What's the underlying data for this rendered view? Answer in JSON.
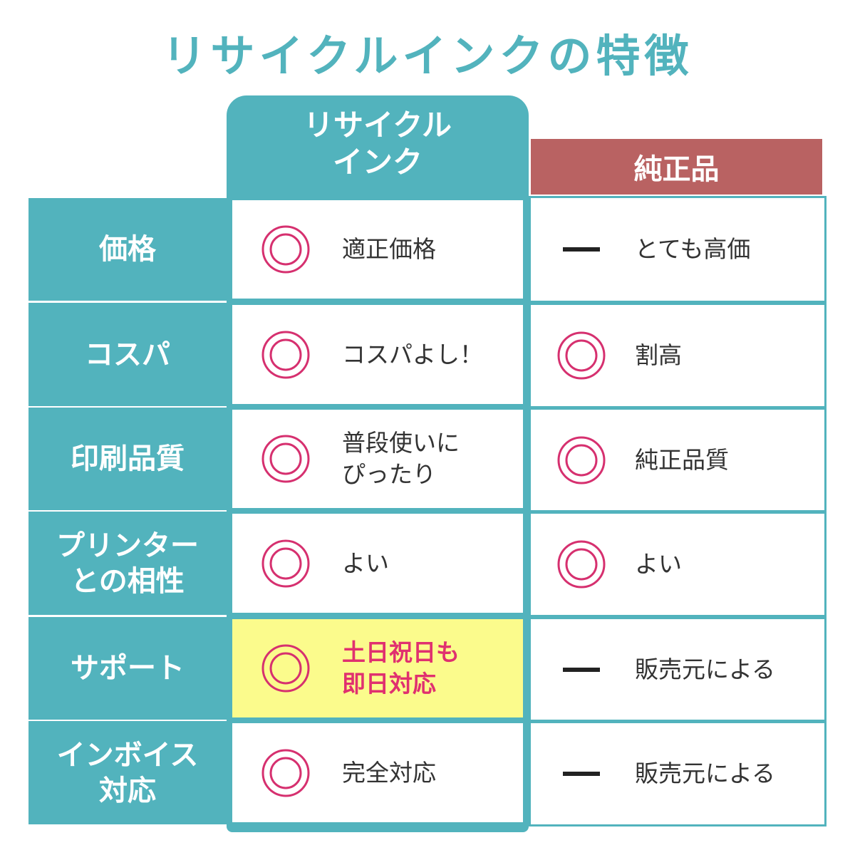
{
  "title": "リサイクルインクの特徴",
  "columns": {
    "recycle": [
      "リサイクル",
      "インク"
    ],
    "genuine": "純正品"
  },
  "colors": {
    "teal": "#52b3bd",
    "genuine_header": "#b96262",
    "mark": "#d6306f",
    "highlight": "#fbfb8c",
    "highlight_text": "#e0306f"
  },
  "rows": [
    {
      "label": [
        "価格"
      ],
      "recycle": {
        "icon": "double-circle-icon",
        "text": [
          "適正価格"
        ]
      },
      "genuine": {
        "icon": "dash-icon",
        "text": [
          "とても高価"
        ]
      }
    },
    {
      "label": [
        "コスパ"
      ],
      "recycle": {
        "icon": "double-circle-icon",
        "text": [
          "コスパよし！"
        ]
      },
      "genuine": {
        "icon": "double-circle-icon",
        "text": [
          "割高"
        ]
      }
    },
    {
      "label": [
        "印刷品質"
      ],
      "recycle": {
        "icon": "double-circle-icon",
        "text": [
          "普段使いに",
          "ぴったり"
        ]
      },
      "genuine": {
        "icon": "double-circle-icon",
        "text": [
          "純正品質"
        ]
      }
    },
    {
      "label": [
        "プリンター",
        "との相性"
      ],
      "recycle": {
        "icon": "double-circle-icon",
        "text": [
          "よい"
        ]
      },
      "genuine": {
        "icon": "double-circle-icon",
        "text": [
          "よい"
        ]
      }
    },
    {
      "label": [
        "サポート"
      ],
      "recycle": {
        "icon": "double-circle-icon",
        "text": [
          "土日祝日も",
          "即日対応"
        ],
        "highlight": true
      },
      "genuine": {
        "icon": "dash-icon",
        "text": [
          "販売元による"
        ]
      }
    },
    {
      "label": [
        "インボイス",
        "対応"
      ],
      "recycle": {
        "icon": "double-circle-icon",
        "text": [
          "完全対応"
        ]
      },
      "genuine": {
        "icon": "dash-icon",
        "text": [
          "販売元による"
        ]
      }
    }
  ]
}
